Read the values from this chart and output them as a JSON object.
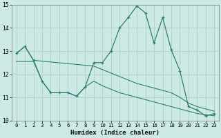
{
  "xlabel": "Humidex (Indice chaleur)",
  "bg_color": "#cce9e5",
  "grid_color": "#b0d4d0",
  "line_color": "#2e7d6e",
  "xlim": [
    -0.5,
    23.5
  ],
  "ylim": [
    10.0,
    15.0
  ],
  "yticks": [
    10,
    11,
    12,
    13,
    14,
    15
  ],
  "xticks": [
    0,
    1,
    2,
    3,
    4,
    5,
    6,
    7,
    8,
    9,
    10,
    11,
    12,
    13,
    14,
    15,
    16,
    17,
    18,
    19,
    20,
    21,
    22,
    23
  ],
  "series_main": {
    "x": [
      0,
      1,
      2,
      3,
      4,
      5,
      6,
      7,
      8,
      9,
      10,
      11,
      12,
      13,
      14,
      15,
      16,
      17,
      18,
      19,
      20,
      21,
      22,
      23
    ],
    "y": [
      12.9,
      13.2,
      12.6,
      11.7,
      11.2,
      11.2,
      11.2,
      11.05,
      11.45,
      12.5,
      12.5,
      13.0,
      14.0,
      14.45,
      14.95,
      14.65,
      13.35,
      14.45,
      13.05,
      12.15,
      10.6,
      10.45,
      10.2,
      10.3
    ]
  },
  "series_upper": {
    "x": [
      0,
      1,
      2,
      9,
      10,
      11,
      12,
      13,
      14,
      15,
      16,
      17,
      18,
      19,
      20,
      21,
      22,
      23
    ],
    "y": [
      12.9,
      13.2,
      12.6,
      12.35,
      12.2,
      12.05,
      11.9,
      11.75,
      11.6,
      11.5,
      11.4,
      11.3,
      11.2,
      11.0,
      10.75,
      10.6,
      10.5,
      10.4
    ]
  },
  "series_lower": {
    "x": [
      0,
      2,
      3,
      4,
      5,
      6,
      7,
      8,
      9,
      10,
      11,
      12,
      13,
      14,
      15,
      16,
      17,
      18,
      19,
      20,
      21,
      22,
      23
    ],
    "y": [
      12.55,
      12.55,
      11.7,
      11.2,
      11.2,
      11.2,
      11.05,
      11.45,
      11.7,
      11.5,
      11.35,
      11.2,
      11.1,
      11.0,
      10.9,
      10.8,
      10.7,
      10.6,
      10.5,
      10.4,
      10.3,
      10.25,
      10.2
    ]
  }
}
